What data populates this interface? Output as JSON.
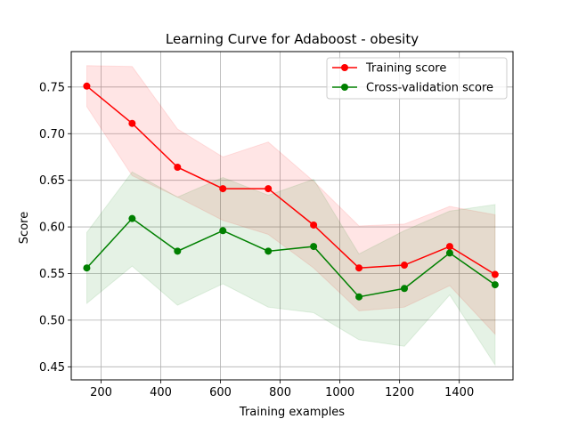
{
  "chart_data": {
    "type": "line",
    "title": "Learning Curve for Adaboost - obesity",
    "xlabel": "Training examples",
    "ylabel": "Score",
    "xlim": [
      100,
      1580
    ],
    "ylim": [
      0.436,
      0.788
    ],
    "xticks": [
      200,
      400,
      600,
      800,
      1000,
      1200,
      1400
    ],
    "yticks": [
      0.45,
      0.5,
      0.55,
      0.6,
      0.65,
      0.7,
      0.75
    ],
    "ytick_labels": [
      "0.45",
      "0.50",
      "0.55",
      "0.60",
      "0.65",
      "0.70",
      "0.75"
    ],
    "grid": true,
    "legend_position": "top-right",
    "x": [
      152,
      304,
      456,
      608,
      760,
      912,
      1064,
      1216,
      1368,
      1520
    ],
    "series": [
      {
        "name": "Training score",
        "color": "#ff0000",
        "band_color": "#ff0000",
        "values": [
          0.751,
          0.711,
          0.664,
          0.641,
          0.641,
          0.602,
          0.556,
          0.559,
          0.579,
          0.549
        ],
        "upper": [
          0.773,
          0.772,
          0.705,
          0.675,
          0.691,
          0.649,
          0.601,
          0.603,
          0.622,
          0.613
        ],
        "lower": [
          0.729,
          0.655,
          0.632,
          0.607,
          0.592,
          0.556,
          0.51,
          0.514,
          0.537,
          0.485
        ]
      },
      {
        "name": "Cross-validation score",
        "color": "#008000",
        "band_color": "#008000",
        "values": [
          0.556,
          0.609,
          0.574,
          0.596,
          0.574,
          0.579,
          0.525,
          0.534,
          0.572,
          0.538
        ],
        "upper": [
          0.594,
          0.659,
          0.632,
          0.653,
          0.634,
          0.651,
          0.571,
          0.596,
          0.617,
          0.624
        ],
        "lower": [
          0.518,
          0.558,
          0.516,
          0.539,
          0.514,
          0.508,
          0.479,
          0.472,
          0.527,
          0.452
        ]
      }
    ]
  }
}
